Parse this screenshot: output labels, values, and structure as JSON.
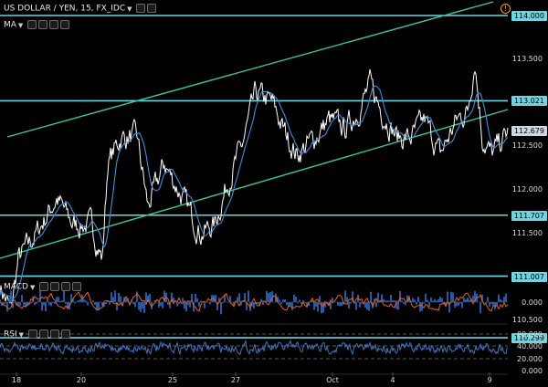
{
  "symbol": {
    "title": "US DOLLAR / YEN, 15, FX_IDC",
    "alert": "!"
  },
  "indicators": {
    "ma": "MA",
    "macd": "MACD",
    "rsi": "RSI"
  },
  "price_labels": [
    {
      "value": "114.000",
      "y_price": 114.0,
      "kind": "level"
    },
    {
      "value": "113.500",
      "y_price": 113.5,
      "kind": "axis"
    },
    {
      "value": "113.021",
      "y_price": 113.021,
      "kind": "level"
    },
    {
      "value": "112.679",
      "y_price": 112.679,
      "kind": "current"
    },
    {
      "value": "112.500",
      "y_price": 112.5,
      "kind": "axis"
    },
    {
      "value": "112.000",
      "y_price": 112.0,
      "kind": "axis"
    },
    {
      "value": "111.707",
      "y_price": 111.707,
      "kind": "level"
    },
    {
      "value": "111.500",
      "y_price": 111.5,
      "kind": "axis"
    },
    {
      "value": "111.007",
      "y_price": 111.007,
      "kind": "level"
    },
    {
      "value": "110.500",
      "y_price": 110.5,
      "kind": "axis"
    },
    {
      "value": "110.299",
      "y_price": 110.299,
      "kind": "level"
    }
  ],
  "macd_labels": [
    "0.000"
  ],
  "rsi_labels": [
    "80.000",
    "40.000",
    "20.000",
    "0.000"
  ],
  "x_labels": [
    "18",
    "20",
    "25",
    "27",
    "Oct",
    "4",
    "9"
  ],
  "colors": {
    "level": "#6fd3e0",
    "channel": "#3ec49a",
    "price": "#ffffff",
    "ma": "#3d8fd6",
    "macd_hist": "#2f6fd6",
    "signal": "#e3641c",
    "rsi": "#3d77c4"
  }
}
